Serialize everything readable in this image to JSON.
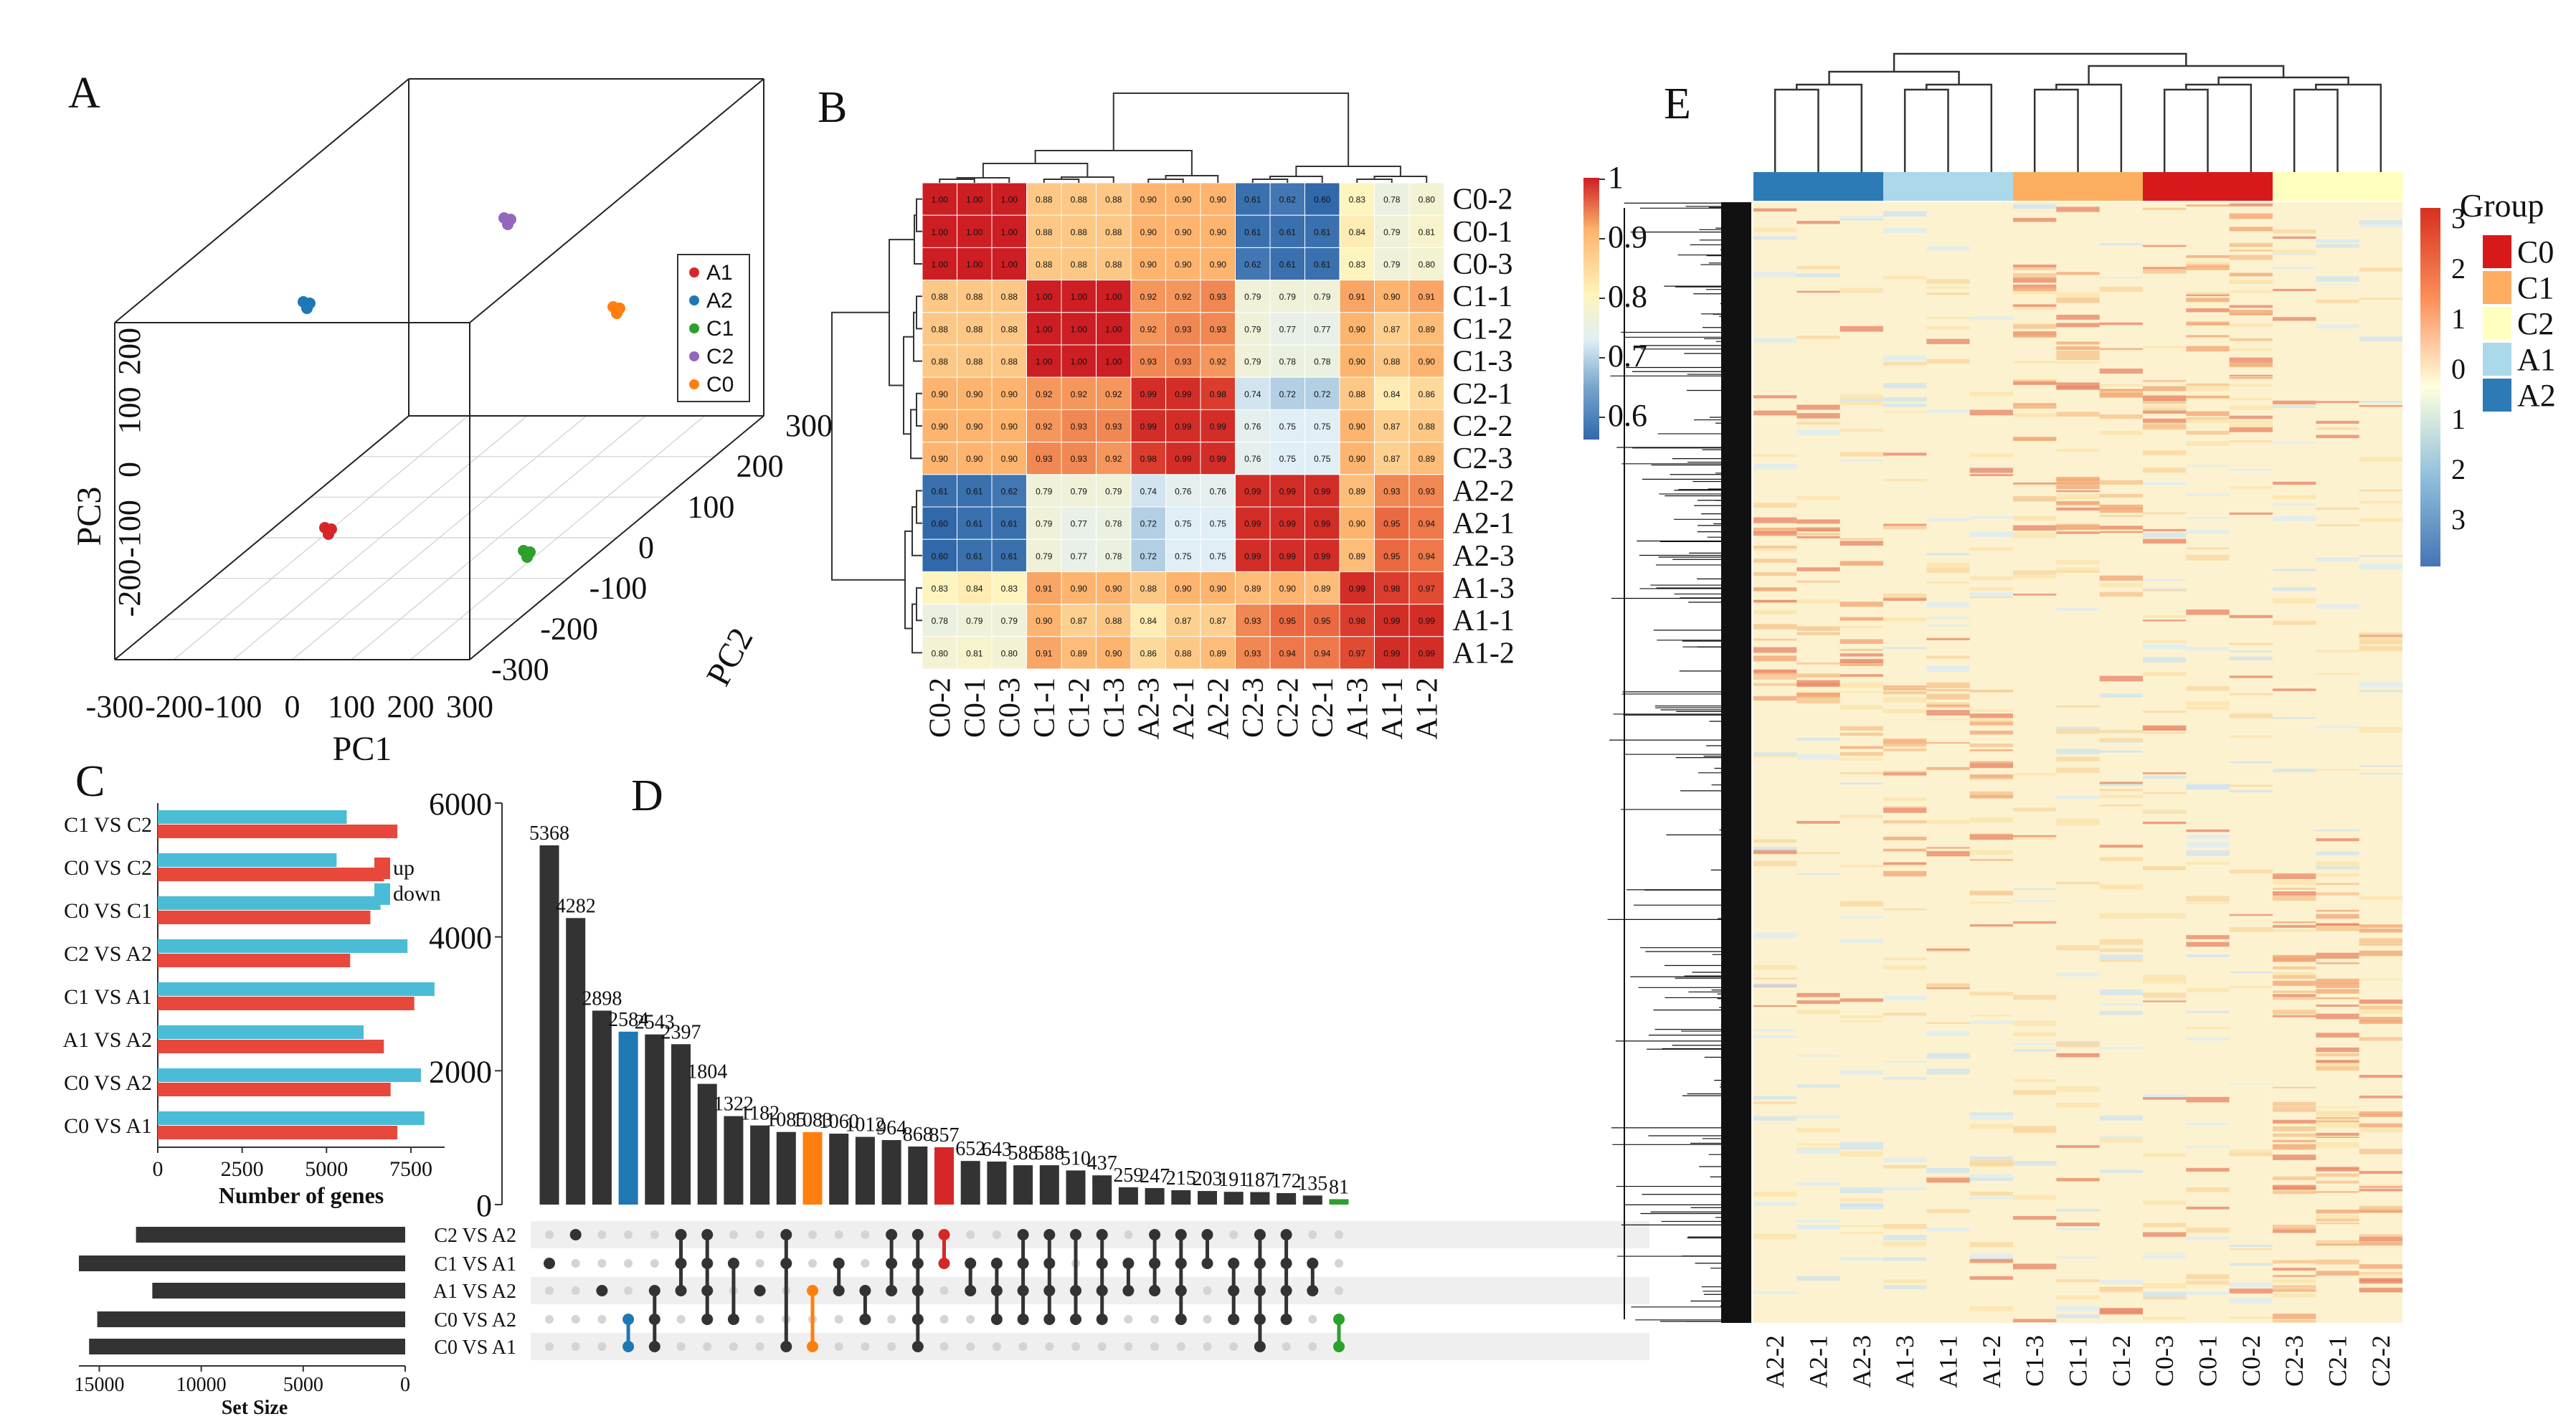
{
  "panels": [
    "A",
    "B",
    "C",
    "D",
    "E"
  ],
  "colors": {
    "A1": "#d62728",
    "A2": "#1f77b4",
    "C1": "#2ca02c",
    "C2": "#9467bd",
    "C0": "#ff7f0e",
    "up": "#e8483b",
    "down": "#4bbcd6",
    "bar": "#333333",
    "blue": "#1f77b4",
    "orange": "#ff7f0e",
    "red": "#d62728",
    "green": "#2ca02c"
  },
  "chart_data": [
    {
      "panel": "A",
      "type": "scatter",
      "title": "",
      "xlabel": "PC1",
      "ylabel": "PC2",
      "zlabel": "PC3",
      "x_ticks": [
        "-300",
        "-200",
        "-100",
        "0",
        "100",
        "200",
        "300"
      ],
      "y_ticks": [
        "-300",
        "-200",
        "-100",
        "0",
        "100",
        "200",
        "300"
      ],
      "z_ticks": [
        "-200",
        "-100",
        "0",
        "100",
        "200"
      ],
      "legend": [
        "A1",
        "A2",
        "C1",
        "C2",
        "C0"
      ],
      "groups": [
        {
          "name": "A1",
          "x": -60,
          "y": -60,
          "z": 20
        },
        {
          "name": "A2",
          "x": -220,
          "y": 240,
          "z": 170
        },
        {
          "name": "C1",
          "x": 140,
          "y": -20,
          "z": 10
        },
        {
          "name": "C2",
          "x": 40,
          "y": 240,
          "z": 240
        },
        {
          "name": "C0",
          "x": 250,
          "y": 260,
          "z": 100
        }
      ]
    },
    {
      "panel": "B",
      "type": "heatmap",
      "rows": [
        "C0-2",
        "C0-1",
        "C0-3",
        "C1-1",
        "C1-2",
        "C1-3",
        "C2-1",
        "C2-2",
        "C2-3",
        "A2-2",
        "A2-1",
        "A2-3",
        "A1-3",
        "A1-1",
        "A1-2"
      ],
      "cols": [
        "C0-2",
        "C0-1",
        "C0-3",
        "C1-1",
        "C1-2",
        "C1-3",
        "A2-3",
        "A2-1",
        "A2-2",
        "C2-3",
        "C2-2",
        "C2-1",
        "A1-3",
        "A1-1",
        "A1-2"
      ],
      "values": [
        [
          "1.00",
          "1.00",
          "1.00",
          "0.88",
          "0.88",
          "0.88",
          "0.90",
          "0.90",
          "0.90",
          "0.61",
          "0.62",
          "0.60",
          "0.83",
          "0.78",
          "0.80"
        ],
        [
          "1.00",
          "1.00",
          "1.00",
          "0.88",
          "0.88",
          "0.88",
          "0.90",
          "0.90",
          "0.90",
          "0.61",
          "0.61",
          "0.61",
          "0.84",
          "0.79",
          "0.81"
        ],
        [
          "1.00",
          "1.00",
          "1.00",
          "0.88",
          "0.88",
          "0.88",
          "0.90",
          "0.90",
          "0.90",
          "0.62",
          "0.61",
          "0.61",
          "0.83",
          "0.79",
          "0.80"
        ],
        [
          "0.88",
          "0.88",
          "0.88",
          "1.00",
          "1.00",
          "1.00",
          "0.92",
          "0.92",
          "0.93",
          "0.79",
          "0.79",
          "0.79",
          "0.91",
          "0.90",
          "0.91"
        ],
        [
          "0.88",
          "0.88",
          "0.88",
          "1.00",
          "1.00",
          "1.00",
          "0.92",
          "0.93",
          "0.93",
          "0.79",
          "0.77",
          "0.77",
          "0.90",
          "0.87",
          "0.89"
        ],
        [
          "0.88",
          "0.88",
          "0.88",
          "1.00",
          "1.00",
          "1.00",
          "0.93",
          "0.93",
          "0.92",
          "0.79",
          "0.78",
          "0.78",
          "0.90",
          "0.88",
          "0.90"
        ],
        [
          "0.90",
          "0.90",
          "0.90",
          "0.92",
          "0.92",
          "0.92",
          "0.99",
          "0.99",
          "0.98",
          "0.74",
          "0.72",
          "0.72",
          "0.88",
          "0.84",
          "0.86"
        ],
        [
          "0.90",
          "0.90",
          "0.90",
          "0.92",
          "0.93",
          "0.93",
          "0.99",
          "0.99",
          "0.99",
          "0.76",
          "0.75",
          "0.75",
          "0.90",
          "0.87",
          "0.88"
        ],
        [
          "0.90",
          "0.90",
          "0.90",
          "0.93",
          "0.93",
          "0.92",
          "0.98",
          "0.99",
          "0.99",
          "0.76",
          "0.75",
          "0.75",
          "0.90",
          "0.87",
          "0.89"
        ],
        [
          "0.61",
          "0.61",
          "0.62",
          "0.79",
          "0.79",
          "0.79",
          "0.74",
          "0.76",
          "0.76",
          "0.99",
          "0.99",
          "0.99",
          "0.89",
          "0.93",
          "0.93"
        ],
        [
          "0.60",
          "0.61",
          "0.61",
          "0.79",
          "0.77",
          "0.78",
          "0.72",
          "0.75",
          "0.75",
          "0.99",
          "0.99",
          "0.99",
          "0.90",
          "0.95",
          "0.94"
        ],
        [
          "0.60",
          "0.61",
          "0.61",
          "0.79",
          "0.77",
          "0.78",
          "0.72",
          "0.75",
          "0.75",
          "0.99",
          "0.99",
          "0.99",
          "0.89",
          "0.95",
          "0.94"
        ],
        [
          "0.83",
          "0.84",
          "0.83",
          "0.91",
          "0.90",
          "0.90",
          "0.88",
          "0.90",
          "0.90",
          "0.89",
          "0.90",
          "0.89",
          "0.99",
          "0.98",
          "0.97"
        ],
        [
          "0.78",
          "0.79",
          "0.79",
          "0.90",
          "0.87",
          "0.88",
          "0.84",
          "0.87",
          "0.87",
          "0.93",
          "0.95",
          "0.95",
          "0.98",
          "0.99",
          "0.99"
        ],
        [
          "0.80",
          "0.81",
          "0.80",
          "0.91",
          "0.89",
          "0.90",
          "0.86",
          "0.88",
          "0.89",
          "0.93",
          "0.94",
          "0.94",
          "0.97",
          "0.99",
          "0.99"
        ]
      ],
      "colorbar_ticks": [
        "1",
        "0.9",
        "0.8",
        "0.7",
        "0.6"
      ]
    },
    {
      "panel": "C",
      "type": "bar",
      "orientation": "horizontal",
      "categories": [
        "C1 VS C2",
        "C0 VS C2",
        "C0 VS C1",
        "C2 VS A2",
        "C1 VS A1",
        "A1 VS A2",
        "C0 VS A2",
        "C0 VS A1"
      ],
      "series": [
        {
          "name": "down",
          "values": [
            5600,
            5300,
            6600,
            7400,
            8200,
            6100,
            7800,
            7900
          ]
        },
        {
          "name": "up",
          "values": [
            7100,
            6700,
            6300,
            5700,
            7600,
            6700,
            6900,
            7100
          ]
        }
      ],
      "xlabel": "Number of genes",
      "x_ticks": [
        "0",
        "2500",
        "5000",
        "7500"
      ],
      "xlim": [
        0,
        8500
      ]
    },
    {
      "panel": "D",
      "type": "bar",
      "title": "",
      "values": [
        5368,
        4282,
        2898,
        2584,
        2543,
        2397,
        1804,
        1322,
        1182,
        1085,
        1083,
        1060,
        1012,
        964,
        868,
        857,
        652,
        643,
        588,
        588,
        510,
        437,
        259,
        247,
        215,
        203,
        191,
        187,
        172,
        135,
        81
      ],
      "value_labels": [
        "5368",
        "4282",
        "2898",
        "2584",
        "2543",
        "2397",
        "1804",
        "1322",
        "1182",
        "1085",
        "1083",
        "1060",
        "1012",
        "964",
        "868",
        "857",
        "652",
        "643",
        "588",
        "588",
        "510",
        "437",
        "259",
        "247",
        "215",
        "203",
        "191",
        "187",
        "172",
        "135",
        "81"
      ],
      "highlight": {
        "3": "blue",
        "10": "orange",
        "15": "red",
        "30": "green"
      },
      "y_ticks": [
        "0",
        "2000",
        "4000",
        "6000"
      ],
      "ylim": [
        0,
        6000
      ],
      "sets": [
        "C2 VS A2",
        "C1 VS A1",
        "A1 VS A2",
        "C0 VS A2",
        "C0 VS A1"
      ],
      "set_sizes": [
        13200,
        16000,
        12400,
        15100,
        15500
      ],
      "set_size_ticks": [
        "15000",
        "10000",
        "5000",
        "0"
      ],
      "set_size_label": "Set Size",
      "membership": [
        [
          1
        ],
        [
          0
        ],
        [
          2
        ],
        [
          3,
          4
        ],
        [
          2,
          3,
          4
        ],
        [
          0,
          1,
          2
        ],
        [
          0,
          1,
          2,
          3
        ],
        [
          1,
          3
        ],
        [
          2
        ],
        [
          0,
          1,
          4
        ],
        [
          2,
          4
        ],
        [
          1,
          2
        ],
        [
          2,
          3
        ],
        [
          0,
          1,
          2
        ],
        [
          0,
          1,
          2,
          3,
          4
        ],
        [
          0,
          1
        ],
        [
          1,
          2
        ],
        [
          1,
          2,
          3
        ],
        [
          0,
          1,
          2,
          3
        ],
        [
          0,
          1,
          2,
          3
        ],
        [
          0,
          2,
          3
        ],
        [
          0,
          1,
          2,
          3
        ],
        [
          1,
          2
        ],
        [
          0,
          1,
          2
        ],
        [
          0,
          1,
          2,
          3
        ],
        [
          0,
          1
        ],
        [
          1,
          2,
          3
        ],
        [
          0,
          1,
          2,
          3,
          4
        ],
        [
          0,
          1,
          2,
          3
        ],
        [
          1,
          2
        ],
        [
          3,
          4
        ]
      ]
    },
    {
      "panel": "E",
      "type": "heatmap",
      "cols": [
        "A2-2",
        "A2-1",
        "A2-3",
        "A1-3",
        "A1-1",
        "A1-2",
        "C1-3",
        "C1-1",
        "C1-2",
        "C0-3",
        "C0-1",
        "C0-2",
        "C2-3",
        "C2-1",
        "C2-2"
      ],
      "col_groups": [
        "A2",
        "A2",
        "A2",
        "A1",
        "A1",
        "A1",
        "C1",
        "C1",
        "C1",
        "C0",
        "C0",
        "C0",
        "C2",
        "C2",
        "C2"
      ],
      "legend_title": "Group",
      "legend": [
        "C0",
        "C1",
        "C2",
        "A1",
        "A2"
      ],
      "legend_colors": [
        "#d7191c",
        "#fdae61",
        "#ffffbf",
        "#abd9e9",
        "#2c7bb6"
      ],
      "colorbar_ticks": [
        "3",
        "2",
        "1",
        "0",
        "1",
        "2",
        "3"
      ]
    }
  ]
}
